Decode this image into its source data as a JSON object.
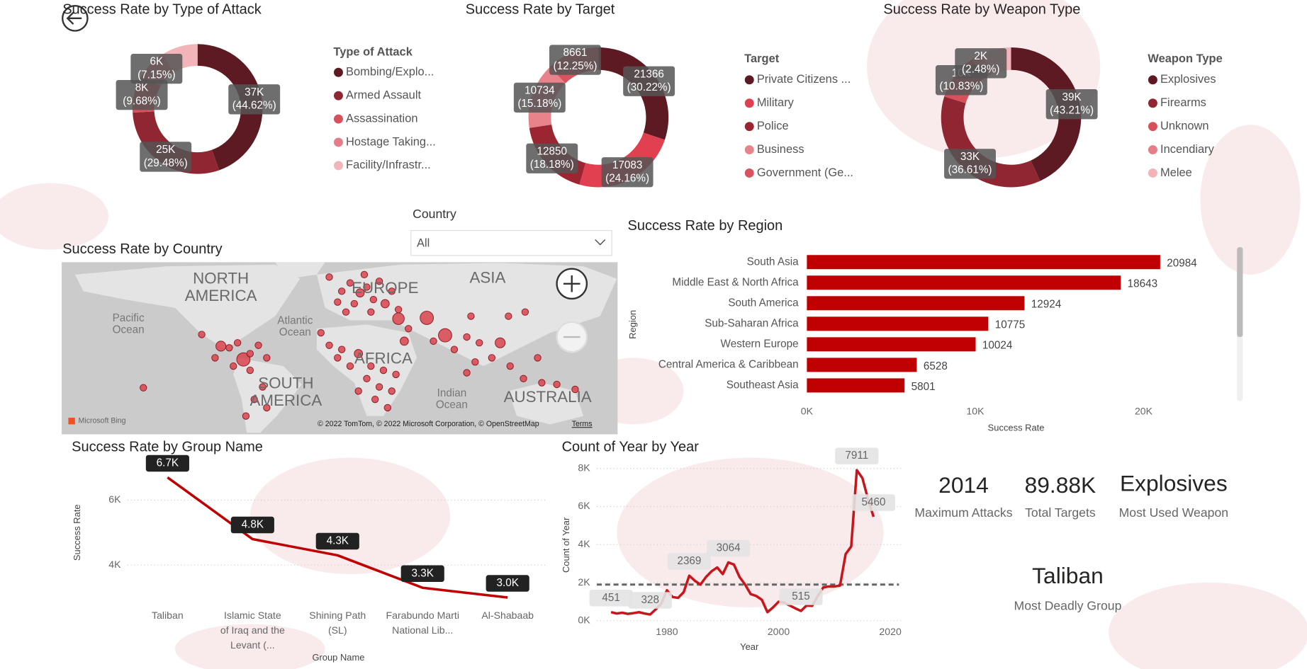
{
  "chart_data": [
    {
      "type": "donut",
      "title": "Success Rate by Type of Attack",
      "legend_title": "Type of Attack",
      "categories": [
        "Bombing/Explo...",
        "Armed Assault",
        "Assassination",
        "Hostage Taking...",
        "Facility/Infrastr..."
      ],
      "values": [
        44.62,
        29.48,
        9.68,
        7.15,
        9.07
      ],
      "value_labels": [
        "37K (44.62%)",
        "25K (29.48%)",
        "8K (9.68%)",
        "6K (7.15%)",
        null
      ],
      "colors": [
        "#5e1a22",
        "#8f2632",
        "#d9505d",
        "#e67d88",
        "#f2b3b9"
      ]
    },
    {
      "type": "donut",
      "title": "Success Rate by Target",
      "legend_title": "Target",
      "categories": [
        "Private Citizens ...",
        "Military",
        "Police",
        "Business",
        "Government (Ge..."
      ],
      "values": [
        21366,
        17083,
        12850,
        10734,
        8661
      ],
      "value_labels": [
        "21366 (30.22%)",
        "17083 (24.16%)",
        "12850 (18.18%)",
        "10734 (15.18%)",
        "8661 (12.25%)"
      ],
      "colors": [
        "#5e1a22",
        "#e0404f",
        "#9c2532",
        "#e8838c",
        "#d9535e"
      ]
    },
    {
      "type": "donut",
      "title": "Success Rate by Weapon Type",
      "legend_title": "Weapon Type",
      "categories": [
        "Explosives",
        "Firearms",
        "Unknown",
        "Incendiary",
        "Melee"
      ],
      "values": [
        43.21,
        36.61,
        10.83,
        2.48,
        6.87
      ],
      "value_labels": [
        "39K (43.21%)",
        "33K (36.61%)",
        "10K (10.83%)",
        "2K (2.48%)",
        null
      ],
      "colors": [
        "#5e1a22",
        "#8f2632",
        "#d9505d",
        "#e67d88",
        "#f2b3b9"
      ]
    },
    {
      "type": "bar",
      "orientation": "horizontal",
      "title": "Success Rate by Region",
      "x_label": "Success Rate",
      "y_label": "Region",
      "categories": [
        "South Asia",
        "Middle East & North Africa",
        "South America",
        "Sub-Saharan Africa",
        "Western Europe",
        "Central America & Caribbean",
        "Southeast Asia"
      ],
      "values": [
        20984,
        18643,
        12924,
        10775,
        10024,
        6528,
        5801
      ],
      "color": "#c00000",
      "xlim": [
        0,
        25000
      ],
      "xticks": [
        {
          "value": 0,
          "label": "0K"
        },
        {
          "value": 10000,
          "label": "10K"
        },
        {
          "value": 20000,
          "label": "20K"
        }
      ]
    },
    {
      "type": "line",
      "title": "Success Rate by Group Name",
      "x_label": "Group Name",
      "y_label": "Success Rate",
      "categories": [
        "Taliban",
        "Islamic State of Iraq and the Levant (...",
        "Shining Path (SL)",
        "Farabundo Marti National Lib...",
        "Al-Shabaab"
      ],
      "values": [
        6700,
        4800,
        4300,
        3300,
        3000
      ],
      "value_labels": [
        "6.7K",
        "4.8K",
        "4.3K",
        "3.3K",
        "3.0K"
      ],
      "color": "#c00000",
      "ylim": [
        2900,
        6900
      ],
      "yticks": [
        {
          "value": 4000,
          "label": "4K"
        },
        {
          "value": 6000,
          "label": "6K"
        }
      ],
      "grid": true
    },
    {
      "type": "line",
      "title": "Count of Year by Year",
      "x_label": "Year",
      "y_label": "Count of Year",
      "x": [
        1970,
        1971,
        1972,
        1973,
        1974,
        1975,
        1976,
        1977,
        1978,
        1979,
        1980,
        1981,
        1982,
        1983,
        1984,
        1985,
        1986,
        1987,
        1988,
        1989,
        1990,
        1991,
        1992,
        1993,
        1994,
        1995,
        1996,
        1997,
        1998,
        1999,
        2000,
        2001,
        2002,
        2003,
        2004,
        2005,
        2006,
        2007,
        2008,
        2009,
        2010,
        2011,
        2012,
        2013,
        2014,
        2015,
        2016,
        2017
      ],
      "values": [
        451,
        380,
        420,
        360,
        400,
        450,
        380,
        328,
        600,
        900,
        1600,
        1250,
        1200,
        1500,
        2369,
        2100,
        1900,
        2300,
        2600,
        2800,
        2450,
        3064,
        2950,
        2300,
        1900,
        1400,
        1300,
        1100,
        450,
        700,
        1000,
        950,
        800,
        650,
        515,
        800,
        780,
        1300,
        1750,
        1800,
        1800,
        1850,
        3500,
        3900,
        7911,
        7500,
        6400,
        5460
      ],
      "value_labels": [
        "451",
        null,
        null,
        null,
        null,
        null,
        null,
        "328",
        null,
        null,
        null,
        null,
        null,
        null,
        "2369",
        null,
        null,
        null,
        null,
        null,
        null,
        "3064",
        null,
        null,
        null,
        null,
        null,
        null,
        null,
        null,
        null,
        null,
        null,
        null,
        "515",
        null,
        null,
        null,
        null,
        null,
        null,
        null,
        null,
        null,
        "7911",
        null,
        null,
        "5460"
      ],
      "color": "#c8161d",
      "average": 1900,
      "xlim": [
        1967,
        2022
      ],
      "xticks": [
        1980,
        2000,
        2020
      ],
      "ylim": [
        0,
        8000
      ],
      "yticks": [
        {
          "value": 0,
          "label": "0K"
        },
        {
          "value": 2000,
          "label": "2K"
        },
        {
          "value": 4000,
          "label": "4K"
        },
        {
          "value": 6000,
          "label": "6K"
        },
        {
          "value": 8000,
          "label": "8K"
        }
      ],
      "grid": true
    }
  ],
  "slicer": {
    "label": "Country",
    "value": "All"
  },
  "map": {
    "title": "Success Rate by Country",
    "labels": [
      "NORTH AMERICA",
      "EUROPE",
      "ASIA",
      "AFRICA",
      "SOUTH AMERICA",
      "AUSTRALIA"
    ],
    "oceans": [
      "Pacific Ocean",
      "Atlantic Ocean",
      "Indian Ocean"
    ],
    "logo": "Microsoft Bing",
    "copyright": "© 2022 TomTom, © 2022 Microsoft Corporation, © OpenStreetMap",
    "terms": "Terms"
  },
  "cards": [
    {
      "value": "2014",
      "label": "Maximum Attacks"
    },
    {
      "value": "89.88K",
      "label": "Total Targets"
    },
    {
      "value": "Explosives",
      "label": "Most Used Weapon"
    },
    {
      "value": "Taliban",
      "label": "Most Deadly Group"
    }
  ]
}
